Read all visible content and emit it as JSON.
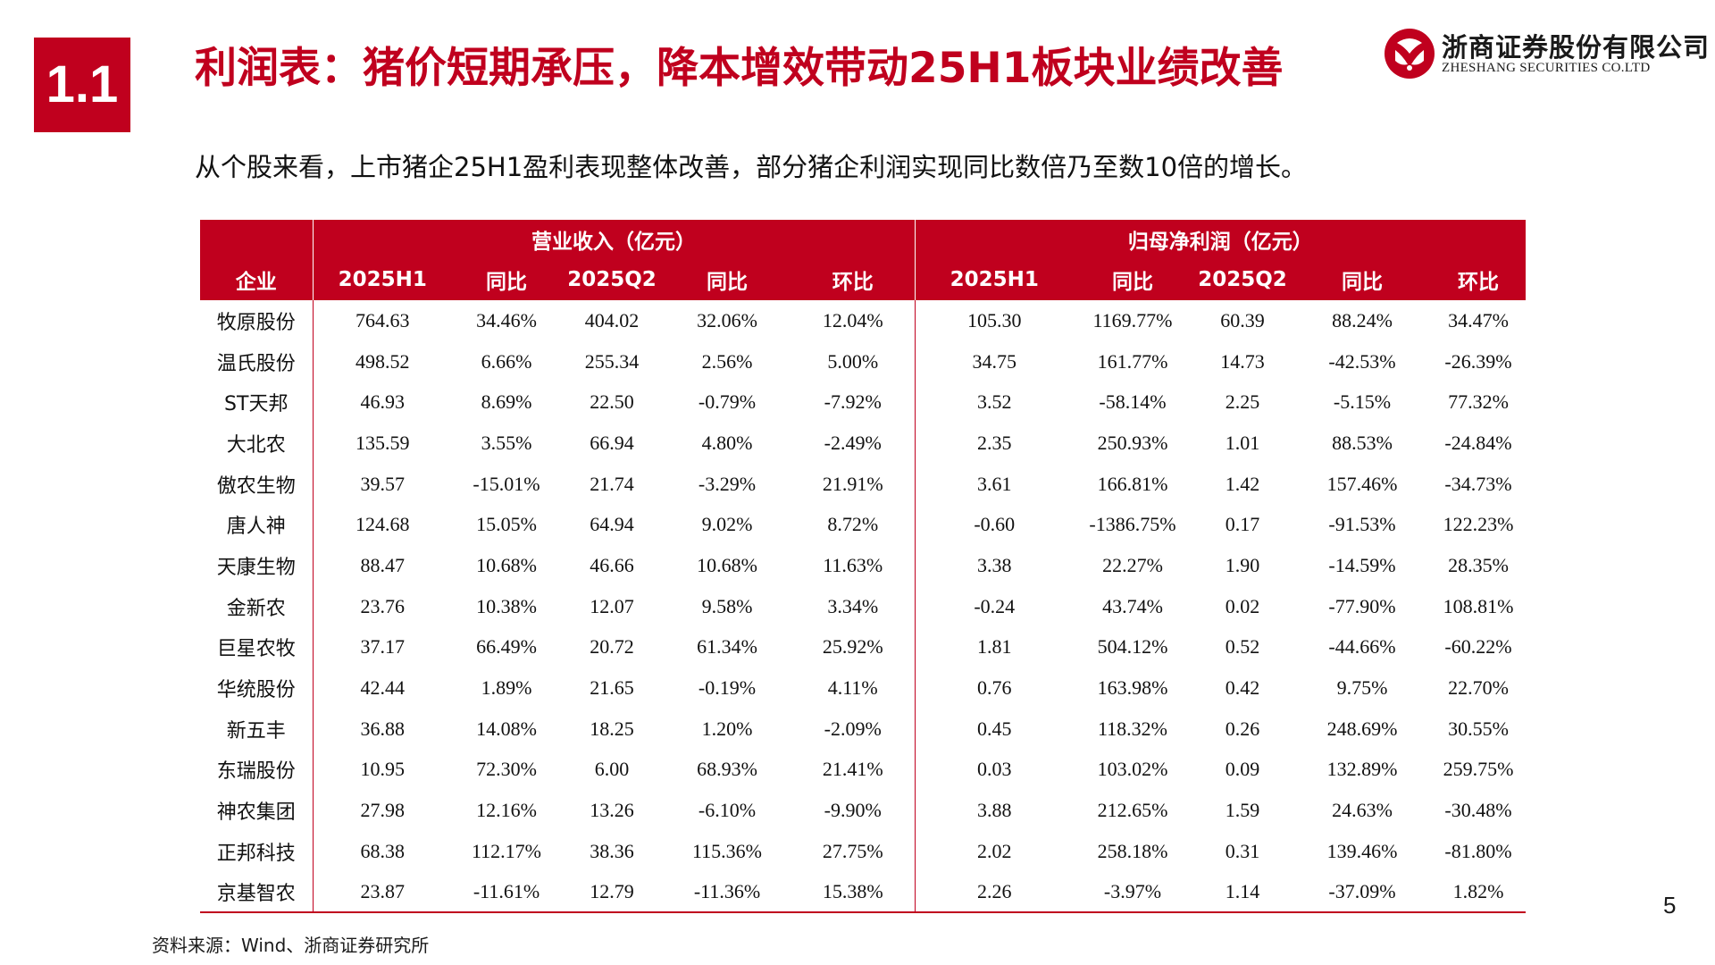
{
  "header": {
    "section_number": "1.1",
    "title": "利润表：猪价短期承压，降本增效带动25H1板块业绩改善"
  },
  "logo": {
    "name_cn": "浙商证券股份有限公司",
    "name_en": "ZHESHANG SECURITIES CO.LTD",
    "icon": "zheshang-logo-icon",
    "brand_color": "#c0001e"
  },
  "subtitle": "从个股来看，上市猪企25H1盈利表现整体改善，部分猪企利润实现同比数倍乃至数10倍的增长。",
  "table": {
    "group_headers": {
      "revenue": "营业收入（亿元）",
      "net_profit": "归母净利润（亿元）"
    },
    "columns": [
      "企业",
      "2025H1",
      "同比",
      "2025Q2",
      "同比",
      "环比",
      "2025H1",
      "同比",
      "2025Q2",
      "同比",
      "环比"
    ],
    "rows": [
      [
        "牧原股份",
        "764.63",
        "34.46%",
        "404.02",
        "32.06%",
        "12.04%",
        "105.30",
        "1169.77%",
        "60.39",
        "88.24%",
        "34.47%"
      ],
      [
        "温氏股份",
        "498.52",
        "6.66%",
        "255.34",
        "2.56%",
        "5.00%",
        "34.75",
        "161.77%",
        "14.73",
        "-42.53%",
        "-26.39%"
      ],
      [
        "ST天邦",
        "46.93",
        "8.69%",
        "22.50",
        "-0.79%",
        "-7.92%",
        "3.52",
        "-58.14%",
        "2.25",
        "-5.15%",
        "77.32%"
      ],
      [
        "大北农",
        "135.59",
        "3.55%",
        "66.94",
        "4.80%",
        "-2.49%",
        "2.35",
        "250.93%",
        "1.01",
        "88.53%",
        "-24.84%"
      ],
      [
        "傲农生物",
        "39.57",
        "-15.01%",
        "21.74",
        "-3.29%",
        "21.91%",
        "3.61",
        "166.81%",
        "1.42",
        "157.46%",
        "-34.73%"
      ],
      [
        "唐人神",
        "124.68",
        "15.05%",
        "64.94",
        "9.02%",
        "8.72%",
        "-0.60",
        "-1386.75%",
        "0.17",
        "-91.53%",
        "122.23%"
      ],
      [
        "天康生物",
        "88.47",
        "10.68%",
        "46.66",
        "10.68%",
        "11.63%",
        "3.38",
        "22.27%",
        "1.90",
        "-14.59%",
        "28.35%"
      ],
      [
        "金新农",
        "23.76",
        "10.38%",
        "12.07",
        "9.58%",
        "3.34%",
        "-0.24",
        "43.74%",
        "0.02",
        "-77.90%",
        "108.81%"
      ],
      [
        "巨星农牧",
        "37.17",
        "66.49%",
        "20.72",
        "61.34%",
        "25.92%",
        "1.81",
        "504.12%",
        "0.52",
        "-44.66%",
        "-60.22%"
      ],
      [
        "华统股份",
        "42.44",
        "1.89%",
        "21.65",
        "-0.19%",
        "4.11%",
        "0.76",
        "163.98%",
        "0.42",
        "9.75%",
        "22.70%"
      ],
      [
        "新五丰",
        "36.88",
        "14.08%",
        "18.25",
        "1.20%",
        "-2.09%",
        "0.45",
        "118.32%",
        "0.26",
        "248.69%",
        "30.55%"
      ],
      [
        "东瑞股份",
        "10.95",
        "72.30%",
        "6.00",
        "68.93%",
        "21.41%",
        "0.03",
        "103.02%",
        "0.09",
        "132.89%",
        "259.75%"
      ],
      [
        "神农集团",
        "27.98",
        "12.16%",
        "13.26",
        "-6.10%",
        "-9.90%",
        "3.88",
        "212.65%",
        "1.59",
        "24.63%",
        "-30.48%"
      ],
      [
        "正邦科技",
        "68.38",
        "112.17%",
        "38.36",
        "115.36%",
        "27.75%",
        "2.02",
        "258.18%",
        "0.31",
        "139.46%",
        "-81.80%"
      ],
      [
        "京基智农",
        "23.87",
        "-11.61%",
        "12.79",
        "-11.36%",
        "15.38%",
        "2.26",
        "-3.97%",
        "1.14",
        "-37.09%",
        "1.82%"
      ]
    ]
  },
  "footer": {
    "page_number": "5",
    "source": "资料来源：Wind、浙商证券研究所"
  }
}
